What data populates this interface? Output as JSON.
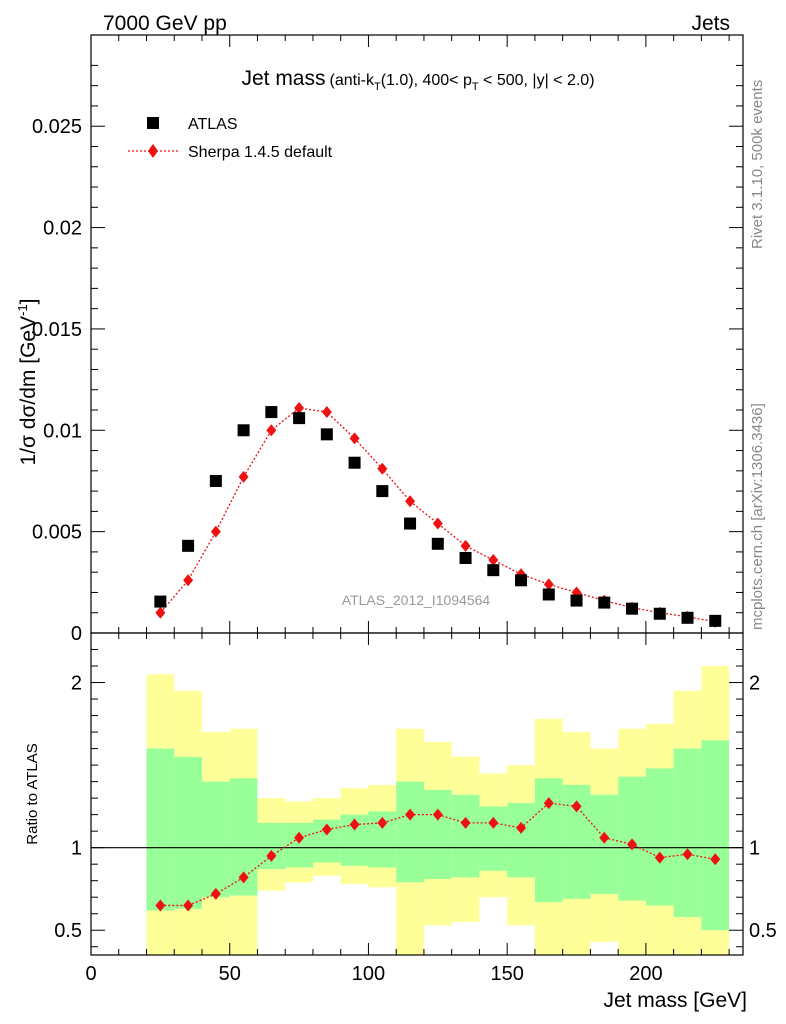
{
  "header": {
    "left": "7000 GeV pp",
    "right": "Jets"
  },
  "side_labels": {
    "rivet": "Rivet 3.1.10,  500k events",
    "mcplots": "mcplots.cern.ch [arXiv:1306.3436]"
  },
  "watermark": "ATLAS_2012_I1094564",
  "chart_data": [
    {
      "type": "scatter",
      "title": "Jet mass (anti-k_T(1.0), 400< p_T < 500, |y| < 2.0)",
      "title_parts": {
        "main": "Jet mass",
        "p1": "(anti-k",
        "sub1": "T",
        "p2": "(1.0), 400< p",
        "sub2": "T",
        "p3": " < 500, |y| < 2.0)"
      },
      "ylabel": "1/σ dσ/dm [GeV⁻¹]",
      "ylabel_parts": {
        "base": "1/σ dσ/dm [GeV",
        "sup": "-1",
        "end": "]"
      },
      "xlim": [
        0,
        235
      ],
      "ylim": [
        0,
        0.0295
      ],
      "yticks": [
        {
          "v": 0,
          "label": "0"
        },
        {
          "v": 0.005,
          "label": "0.005"
        },
        {
          "v": 0.01,
          "label": "0.01"
        },
        {
          "v": 0.015,
          "label": "0.015"
        },
        {
          "v": 0.02,
          "label": "0.02"
        },
        {
          "v": 0.025,
          "label": "0.025"
        }
      ],
      "legend_position": "top-left",
      "x": [
        25,
        35,
        45,
        55,
        65,
        75,
        85,
        95,
        105,
        115,
        125,
        135,
        145,
        155,
        165,
        175,
        185,
        195,
        205,
        215,
        225
      ],
      "series": [
        {
          "name": "ATLAS",
          "marker": "square",
          "color": "#000000",
          "values": [
            0.00155,
            0.0043,
            0.0075,
            0.01,
            0.0109,
            0.0106,
            0.0098,
            0.0084,
            0.007,
            0.0054,
            0.0044,
            0.0037,
            0.0031,
            0.0026,
            0.0019,
            0.0016,
            0.0015,
            0.0012,
            0.00095,
            0.00075,
            0.0006
          ]
        },
        {
          "name": "Sherpa 1.4.5 default",
          "marker": "diamond",
          "line": "dotted",
          "color": "#ee1111",
          "values": [
            0.001,
            0.0026,
            0.005,
            0.0077,
            0.01,
            0.0111,
            0.0109,
            0.0096,
            0.0081,
            0.0065,
            0.0054,
            0.0043,
            0.0036,
            0.0029,
            0.0024,
            0.002,
            0.0016,
            0.00125,
            0.001,
            0.0008,
            0.00055
          ]
        }
      ]
    },
    {
      "type": "line",
      "ylabel": "Ratio to ATLAS",
      "xlabel": "Jet mass [GeV]",
      "xlim": [
        0,
        235
      ],
      "ylim": [
        0.35,
        2.3
      ],
      "xticks": [
        {
          "v": 0,
          "label": "0"
        },
        {
          "v": 50,
          "label": "50"
        },
        {
          "v": 100,
          "label": "100"
        },
        {
          "v": 150,
          "label": "150"
        },
        {
          "v": 200,
          "label": "200"
        }
      ],
      "yticks": [
        {
          "v": 0.5,
          "label": "0.5"
        },
        {
          "v": 1,
          "label": "1"
        },
        {
          "v": 2,
          "label": "2"
        }
      ],
      "reference_line": 1,
      "bin_edges": [
        20,
        30,
        40,
        50,
        60,
        70,
        80,
        90,
        100,
        110,
        120,
        130,
        140,
        150,
        160,
        170,
        180,
        190,
        200,
        210,
        220,
        230
      ],
      "band_colors": {
        "outer": "#ffff99",
        "inner": "#99ff99"
      },
      "yellow_band": [
        {
          "lo": 0.35,
          "hi": 2.05
        },
        {
          "lo": 0.35,
          "hi": 1.95
        },
        {
          "lo": 0.35,
          "hi": 1.7
        },
        {
          "lo": 0.35,
          "hi": 1.72
        },
        {
          "lo": 0.74,
          "hi": 1.3
        },
        {
          "lo": 0.79,
          "hi": 1.28
        },
        {
          "lo": 0.83,
          "hi": 1.3
        },
        {
          "lo": 0.78,
          "hi": 1.36
        },
        {
          "lo": 0.76,
          "hi": 1.38
        },
        {
          "lo": 0.35,
          "hi": 1.72
        },
        {
          "lo": 0.53,
          "hi": 1.64
        },
        {
          "lo": 0.55,
          "hi": 1.55
        },
        {
          "lo": 0.7,
          "hi": 1.45
        },
        {
          "lo": 0.53,
          "hi": 1.5
        },
        {
          "lo": 0.35,
          "hi": 1.78
        },
        {
          "lo": 0.35,
          "hi": 1.7
        },
        {
          "lo": 0.43,
          "hi": 1.6
        },
        {
          "lo": 0.35,
          "hi": 1.72
        },
        {
          "lo": 0.35,
          "hi": 1.75
        },
        {
          "lo": 0.35,
          "hi": 1.95
        },
        {
          "lo": 0.35,
          "hi": 2.1
        }
      ],
      "green_band": [
        {
          "lo": 0.62,
          "hi": 1.6
        },
        {
          "lo": 0.63,
          "hi": 1.55
        },
        {
          "lo": 0.7,
          "hi": 1.4
        },
        {
          "lo": 0.71,
          "hi": 1.42
        },
        {
          "lo": 0.87,
          "hi": 1.15
        },
        {
          "lo": 0.88,
          "hi": 1.15
        },
        {
          "lo": 0.91,
          "hi": 1.17
        },
        {
          "lo": 0.89,
          "hi": 1.2
        },
        {
          "lo": 0.88,
          "hi": 1.22
        },
        {
          "lo": 0.79,
          "hi": 1.4
        },
        {
          "lo": 0.81,
          "hi": 1.35
        },
        {
          "lo": 0.82,
          "hi": 1.32
        },
        {
          "lo": 0.86,
          "hi": 1.25
        },
        {
          "lo": 0.82,
          "hi": 1.27
        },
        {
          "lo": 0.67,
          "hi": 1.42
        },
        {
          "lo": 0.69,
          "hi": 1.38
        },
        {
          "lo": 0.72,
          "hi": 1.32
        },
        {
          "lo": 0.68,
          "hi": 1.43
        },
        {
          "lo": 0.65,
          "hi": 1.48
        },
        {
          "lo": 0.58,
          "hi": 1.6
        },
        {
          "lo": 0.5,
          "hi": 1.65
        }
      ],
      "x": [
        25,
        35,
        45,
        55,
        65,
        75,
        85,
        95,
        105,
        115,
        125,
        135,
        145,
        155,
        165,
        175,
        185,
        195,
        205,
        215,
        225
      ],
      "series": [
        {
          "name": "Sherpa 1.4.5 default",
          "marker": "diamond",
          "line": "dotted",
          "color": "#ee1111",
          "values": [
            0.65,
            0.65,
            0.72,
            0.82,
            0.95,
            1.06,
            1.11,
            1.14,
            1.15,
            1.2,
            1.2,
            1.15,
            1.15,
            1.12,
            1.27,
            1.25,
            1.06,
            1.02,
            0.94,
            0.96,
            0.93
          ]
        }
      ]
    }
  ]
}
